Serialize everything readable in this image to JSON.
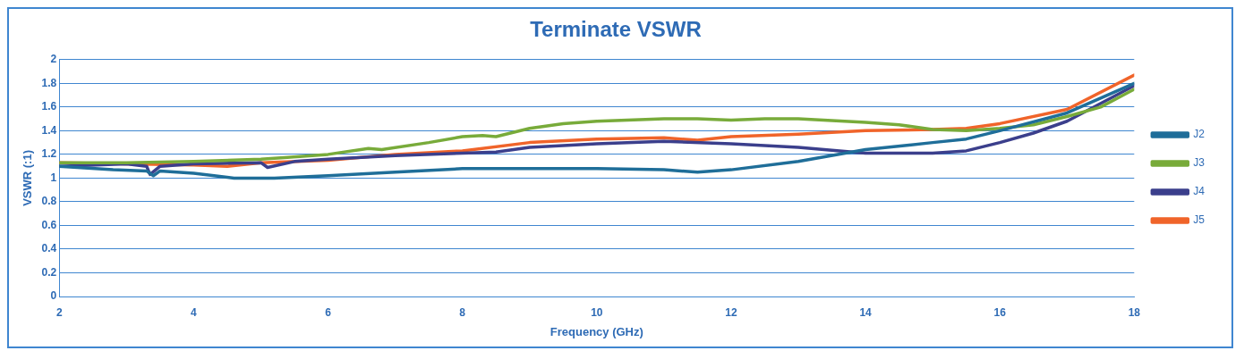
{
  "chart_data": {
    "type": "line",
    "title": "Terminate VSWR",
    "xlabel": "Frequency (GHz)",
    "ylabel": "VSWR (:1)",
    "xlim": [
      2,
      18
    ],
    "xticks": [
      2,
      4,
      6,
      8,
      10,
      12,
      14,
      16,
      18
    ],
    "ylim": [
      0,
      2
    ],
    "yticks": [
      0,
      0.2,
      0.4,
      0.6,
      0.8,
      1,
      1.2,
      1.4,
      1.6,
      1.8,
      2
    ],
    "grid": "y",
    "legend": "right",
    "marker": "none",
    "line_style": "solid",
    "series": [
      {
        "name": "J2",
        "color": "#1f6e99",
        "x": [
          2,
          2.8,
          3.3,
          3.4,
          3.5,
          4,
          4.6,
          5.2,
          6,
          7,
          8,
          9,
          10,
          11,
          11.5,
          12,
          13,
          14,
          15,
          15.5,
          16,
          17,
          18
        ],
        "values": [
          1.1,
          1.07,
          1.06,
          1.02,
          1.06,
          1.04,
          1.0,
          1.0,
          1.02,
          1.05,
          1.08,
          1.08,
          1.08,
          1.07,
          1.05,
          1.07,
          1.14,
          1.24,
          1.3,
          1.33,
          1.4,
          1.55,
          1.8
        ]
      },
      {
        "name": "J3",
        "color": "#78ab3a",
        "x": [
          2,
          3,
          4,
          5,
          5.3,
          6,
          6.6,
          6.8,
          7.5,
          8,
          8.3,
          8.5,
          9,
          9.5,
          10,
          11,
          11.5,
          12,
          12.5,
          13,
          14,
          14.5,
          15,
          15.5,
          16,
          16.5,
          17,
          17.5,
          18
        ],
        "values": [
          1.13,
          1.13,
          1.14,
          1.16,
          1.17,
          1.2,
          1.25,
          1.24,
          1.3,
          1.35,
          1.36,
          1.35,
          1.42,
          1.46,
          1.48,
          1.5,
          1.5,
          1.49,
          1.5,
          1.5,
          1.47,
          1.45,
          1.41,
          1.4,
          1.42,
          1.45,
          1.52,
          1.6,
          1.75
        ]
      },
      {
        "name": "J4",
        "color": "#3b3f8c",
        "x": [
          2,
          3,
          3.3,
          3.35,
          3.5,
          4,
          5,
          5.1,
          5.5,
          6,
          7,
          8,
          8.5,
          9,
          10,
          11,
          12,
          13,
          14,
          15,
          15.5,
          16,
          16.5,
          17,
          18
        ],
        "values": [
          1.1,
          1.12,
          1.1,
          1.03,
          1.1,
          1.12,
          1.13,
          1.09,
          1.14,
          1.16,
          1.19,
          1.21,
          1.22,
          1.26,
          1.29,
          1.31,
          1.29,
          1.26,
          1.21,
          1.21,
          1.23,
          1.3,
          1.38,
          1.48,
          1.78
        ]
      },
      {
        "name": "J5",
        "color": "#f0642a",
        "x": [
          2,
          3,
          4,
          4.5,
          5,
          6,
          7,
          8,
          9,
          10,
          11,
          11.5,
          12,
          13,
          14,
          15,
          15.5,
          16,
          17,
          18
        ],
        "values": [
          1.13,
          1.12,
          1.11,
          1.1,
          1.13,
          1.15,
          1.2,
          1.23,
          1.3,
          1.33,
          1.34,
          1.32,
          1.35,
          1.37,
          1.4,
          1.41,
          1.42,
          1.46,
          1.58,
          1.87
        ]
      }
    ]
  }
}
